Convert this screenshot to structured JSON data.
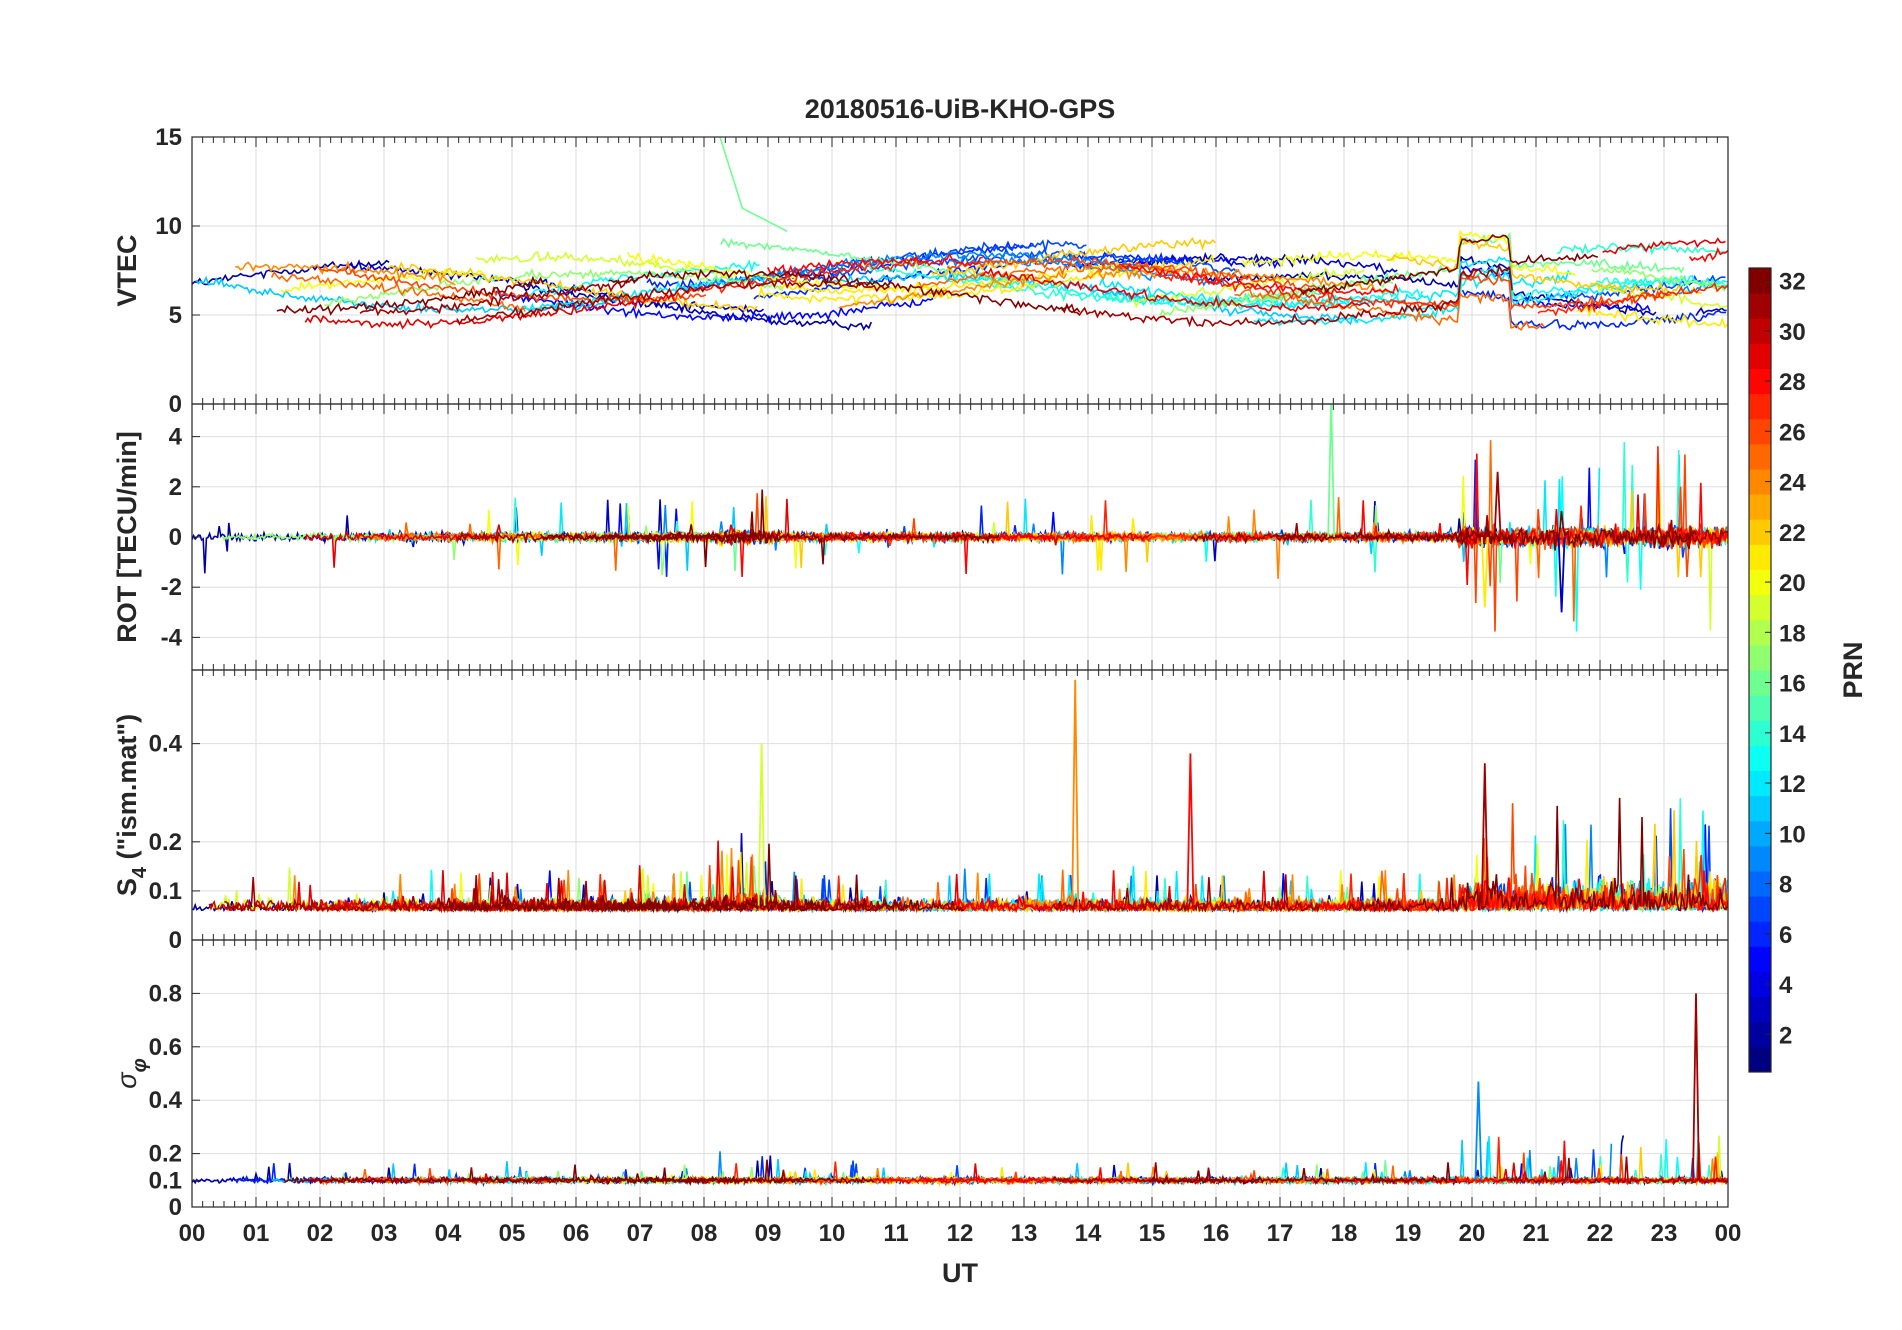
{
  "chart_data": {
    "type": "line",
    "title": "20180516-UiB-KHO-GPS",
    "xlabel": "UT",
    "x_tick_labels": [
      "00",
      "01",
      "02",
      "03",
      "04",
      "05",
      "06",
      "07",
      "08",
      "09",
      "10",
      "11",
      "12",
      "13",
      "14",
      "15",
      "16",
      "17",
      "18",
      "19",
      "20",
      "21",
      "22",
      "23",
      "00"
    ],
    "xlim": [
      0,
      24
    ],
    "grid": true,
    "colormap": "jet",
    "colorbar": {
      "label": "PRN",
      "range": [
        1,
        32
      ],
      "tick_labels": [
        "2",
        "4",
        "6",
        "8",
        "10",
        "12",
        "14",
        "16",
        "18",
        "20",
        "22",
        "24",
        "26",
        "28",
        "30",
        "32"
      ],
      "placement": "right"
    },
    "panels": [
      {
        "ylabel": "VTEC",
        "ylim": [
          0,
          15
        ],
        "y_tick_labels": [
          "0",
          "5",
          "10",
          "15"
        ],
        "series_summary": "VTEC per satellite mostly 5 to 9 TECU; peaks near 10-12 around 09 UT and 20 UT; PRN 16 trace starts near 15 at 08 UT"
      },
      {
        "ylabel": "ROT [TECU/min]",
        "ylim": [
          -5.3,
          5.3
        ],
        "y_tick_labels": [
          "-4",
          "-2",
          "0",
          "2",
          "4"
        ],
        "series_summary": "Rate of TEC mostly within +/-0.5; spike to about 5.5 near 17.8 UT; fluctuations to about +/-3 between 20 and 24 UT"
      },
      {
        "ylabel_main": "S",
        "ylabel_sub": "4",
        "ylabel_rest": " (\"ism.mat\")",
        "ylim": [
          0,
          0.55
        ],
        "y_tick_labels": [
          "0",
          "0.1",
          "0.2",
          "0.4"
        ],
        "series_summary": "S4 index baseline about 0.05 to 0.1; peaks about 0.53 at 13.8 UT, 0.4 at 8.9 UT, 0.38 at 15.6 UT, 0.36 at 20.2 UT"
      },
      {
        "ylabel_main": "σ",
        "ylabel_sub": "φ",
        "ylim": [
          0,
          1
        ],
        "y_tick_labels": [
          "0",
          "0.1",
          "0.2",
          "0.4",
          "0.6",
          "0.8"
        ],
        "series_summary": "Phase scintillation baseline about 0.1; peaks 0.47 at 20.1 UT and 0.8 at 23.5 UT"
      }
    ]
  }
}
